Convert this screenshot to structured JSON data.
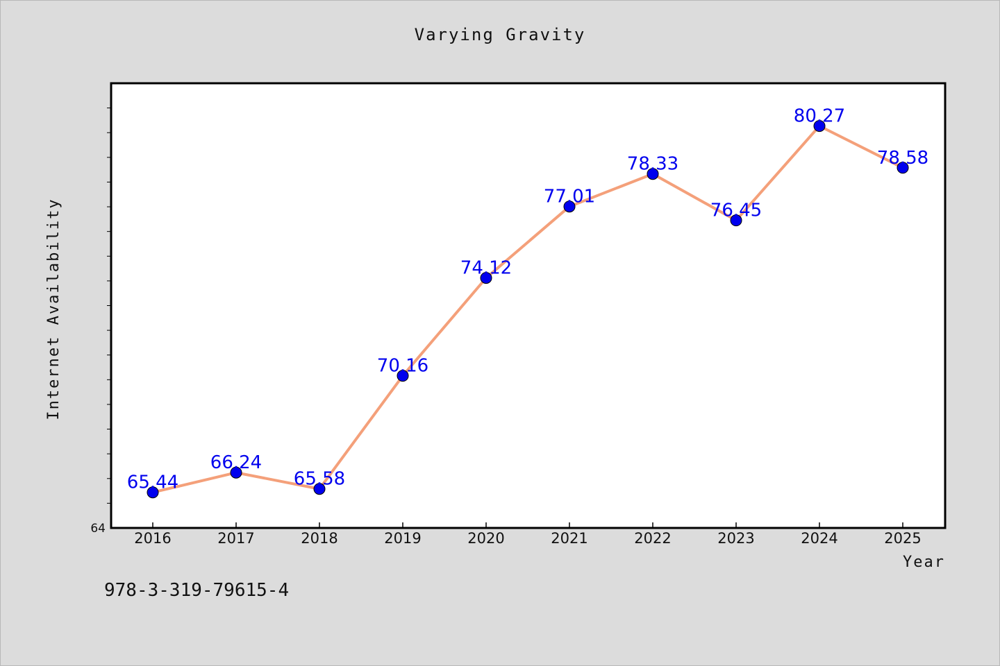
{
  "chart_data": {
    "type": "line",
    "title": "Varying Gravity",
    "xlabel": "Year",
    "ylabel": "Internet Availability",
    "categories": [
      "2016",
      "2017",
      "2018",
      "2019",
      "2020",
      "2021",
      "2022",
      "2023",
      "2024",
      "2025"
    ],
    "series": [
      {
        "values": [
          65.44,
          66.24,
          65.58,
          70.16,
          74.12,
          77.01,
          78.33,
          76.45,
          80.27,
          78.58
        ],
        "data_labels": [
          "65.44",
          "66.24",
          "65.58",
          "70.16",
          "74.12",
          "77.01",
          "78.33",
          "76.45",
          "80.27",
          "78.58"
        ],
        "line_color": "#f4a07a",
        "marker_color": "#0000ee"
      }
    ],
    "y_tick_labels": [
      "64"
    ],
    "ylim": [
      64,
      82
    ],
    "grid": false,
    "label_color": "#0000ee"
  },
  "footer": {
    "code": "978-3-319-79615-4"
  },
  "colors": {
    "background": "#dcdcdc",
    "plot_background": "#ffffff"
  }
}
